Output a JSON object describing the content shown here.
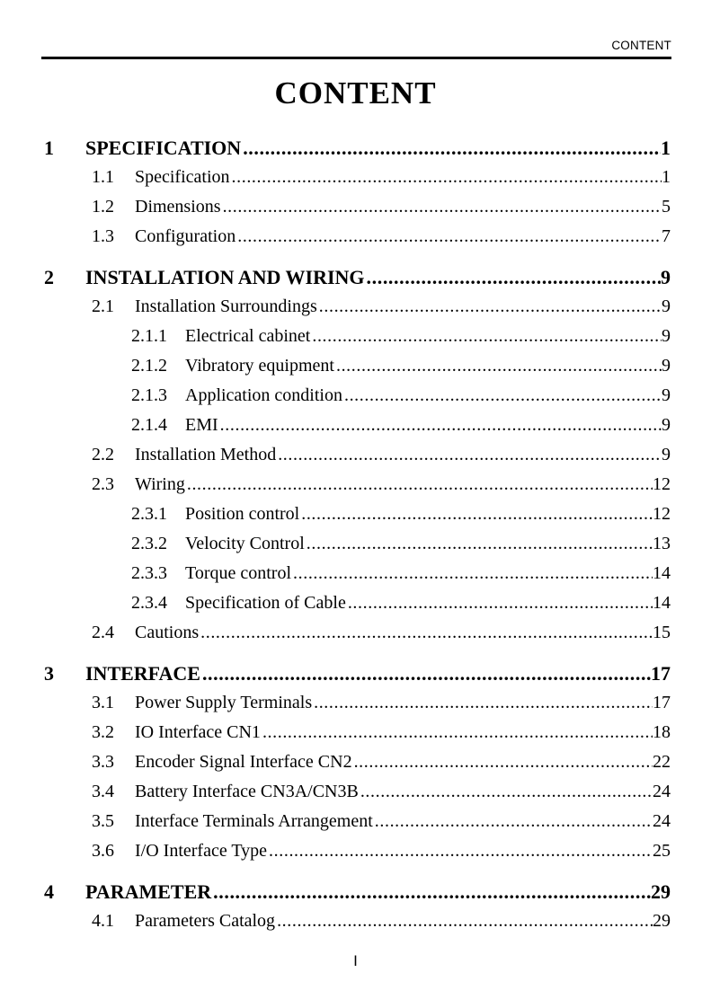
{
  "header": {
    "running_title": "CONTENT"
  },
  "title": "CONTENT",
  "footer": {
    "page_number": "I"
  },
  "colors": {
    "background": "#ffffff",
    "text": "#000000",
    "rule": "#000000"
  },
  "toc": {
    "entries": [
      {
        "number": "1",
        "title": "SPECIFICATION",
        "page": "1",
        "level": 1
      },
      {
        "number": "1.1",
        "title": "Specification",
        "page": "1",
        "level": 2
      },
      {
        "number": "1.2",
        "title": "Dimensions",
        "page": "5",
        "level": 2
      },
      {
        "number": "1.3",
        "title": "Configuration",
        "page": "7",
        "level": 2
      },
      {
        "number": "2",
        "title": "INSTALLATION AND WIRING",
        "page": "9",
        "level": 1
      },
      {
        "number": "2.1",
        "title": "Installation Surroundings",
        "page": "9",
        "level": 2
      },
      {
        "number": "2.1.1",
        "title": "Electrical cabinet",
        "page": "9",
        "level": 3
      },
      {
        "number": "2.1.2",
        "title": "Vibratory equipment",
        "page": "9",
        "level": 3
      },
      {
        "number": "2.1.3",
        "title": "Application condition",
        "page": "9",
        "level": 3
      },
      {
        "number": "2.1.4",
        "title": "EMI",
        "page": "9",
        "level": 3
      },
      {
        "number": "2.2",
        "title": "Installation Method",
        "page": "9",
        "level": 2
      },
      {
        "number": "2.3",
        "title": "Wiring",
        "page": "12",
        "level": 2
      },
      {
        "number": "2.3.1",
        "title": "Position control",
        "page": "12",
        "level": 3
      },
      {
        "number": "2.3.2",
        "title": "Velocity Control",
        "page": "13",
        "level": 3
      },
      {
        "number": "2.3.3",
        "title": "Torque control",
        "page": "14",
        "level": 3
      },
      {
        "number": "2.3.4",
        "title": "Specification of Cable",
        "page": "14",
        "level": 3
      },
      {
        "number": "2.4",
        "title": "Cautions",
        "page": "15",
        "level": 2
      },
      {
        "number": "3",
        "title": "INTERFACE",
        "page": "17",
        "level": 1
      },
      {
        "number": "3.1",
        "title": "Power Supply Terminals",
        "page": "17",
        "level": 2
      },
      {
        "number": "3.2",
        "title": "IO Interface CN1",
        "page": "18",
        "level": 2
      },
      {
        "number": "3.3",
        "title": "Encoder Signal Interface CN2",
        "page": "22",
        "level": 2
      },
      {
        "number": "3.4",
        "title": "Battery Interface CN3A/CN3B",
        "page": "24",
        "level": 2
      },
      {
        "number": "3.5",
        "title": "Interface Terminals Arrangement",
        "page": "24",
        "level": 2
      },
      {
        "number": "3.6",
        "title": "I/O Interface Type",
        "page": "25",
        "level": 2
      },
      {
        "number": "4",
        "title": "PARAMETER",
        "page": "29",
        "level": 1
      },
      {
        "number": "4.1",
        "title": "Parameters Catalog",
        "page": "29",
        "level": 2
      }
    ]
  }
}
